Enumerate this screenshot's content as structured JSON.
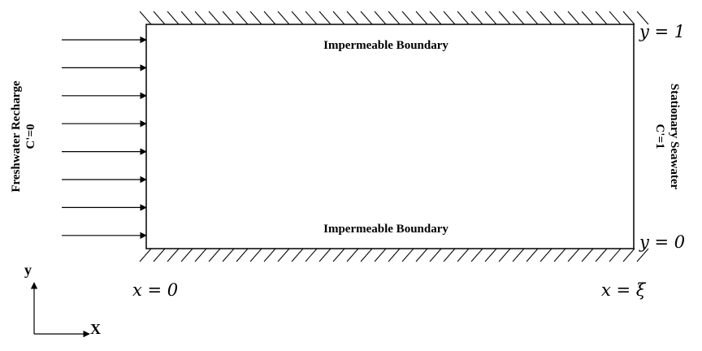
{
  "diagram": {
    "top_boundary": "Impermeable Boundary",
    "bottom_boundary": "Impermeable Boundary",
    "left_label_line1": "Freshwater Recharge",
    "left_label_line2": "C'=0",
    "right_label_line1": "Stationary Seawater",
    "right_label_line2": "C'=1",
    "y_top": "y = 1",
    "y_bottom": "y = 0",
    "x_left": "x = 0",
    "x_right": "x = ξ",
    "axis_y": "y",
    "axis_x": "X",
    "recharge_arrow_count": 8
  }
}
